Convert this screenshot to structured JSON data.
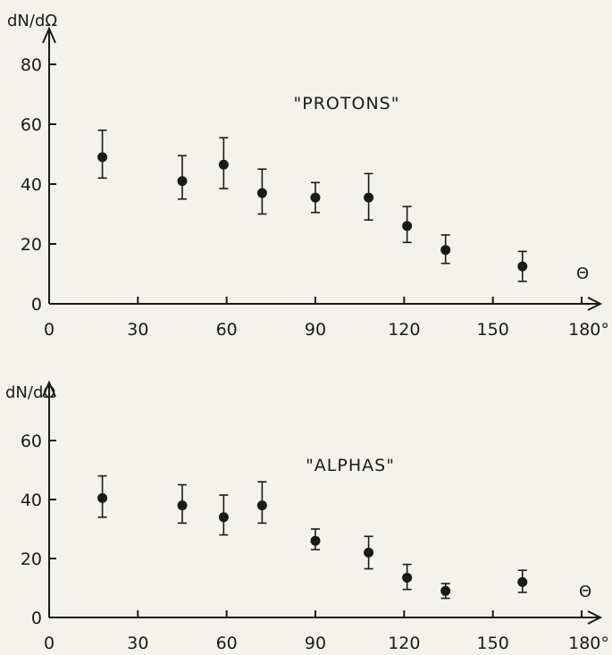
{
  "chart_data": [
    {
      "type": "scatter",
      "title": "",
      "annotation": "\"PROTONS\"",
      "ylabel": "dN/dΩ",
      "xlabel": "Θ",
      "x_ticks": [
        "0",
        "30",
        "60",
        "90",
        "120",
        "150",
        "180°"
      ],
      "y_ticks": [
        "0",
        "20",
        "40",
        "60",
        "80"
      ],
      "xlim": [
        0,
        180
      ],
      "ylim": [
        0,
        80
      ],
      "grid": false,
      "series": [
        {
          "x": [
            18,
            45,
            59,
            72,
            90,
            108,
            121,
            134,
            160
          ],
          "y": [
            49,
            41,
            46.5,
            37,
            35.5,
            35.5,
            26,
            18,
            12.5
          ],
          "y_err_low": [
            7,
            6,
            8,
            7,
            5,
            7.5,
            5.5,
            4.5,
            5
          ],
          "y_err_high": [
            9,
            8.5,
            9,
            8,
            5,
            8,
            6.5,
            5,
            5
          ]
        }
      ]
    },
    {
      "type": "scatter",
      "title": "",
      "annotation": "\"ALPHAS\"",
      "ylabel": "dN/dΩ",
      "xlabel": "Θ",
      "x_ticks": [
        "0",
        "30",
        "60",
        "90",
        "120",
        "150",
        "180°"
      ],
      "y_ticks": [
        "0",
        "20",
        "40",
        "60"
      ],
      "xlim": [
        0,
        180
      ],
      "ylim": [
        0,
        70
      ],
      "grid": false,
      "series": [
        {
          "x": [
            18,
            45,
            59,
            72,
            90,
            108,
            121,
            134,
            160
          ],
          "y": [
            40.5,
            38,
            34,
            38,
            26,
            22,
            13.5,
            9,
            12
          ],
          "y_err_low": [
            6.5,
            6,
            6,
            6,
            3,
            5.5,
            4,
            2.5,
            3.5
          ],
          "y_err_high": [
            7.5,
            7,
            7.5,
            8,
            4,
            5.5,
            4.5,
            2.5,
            4
          ]
        }
      ]
    }
  ]
}
